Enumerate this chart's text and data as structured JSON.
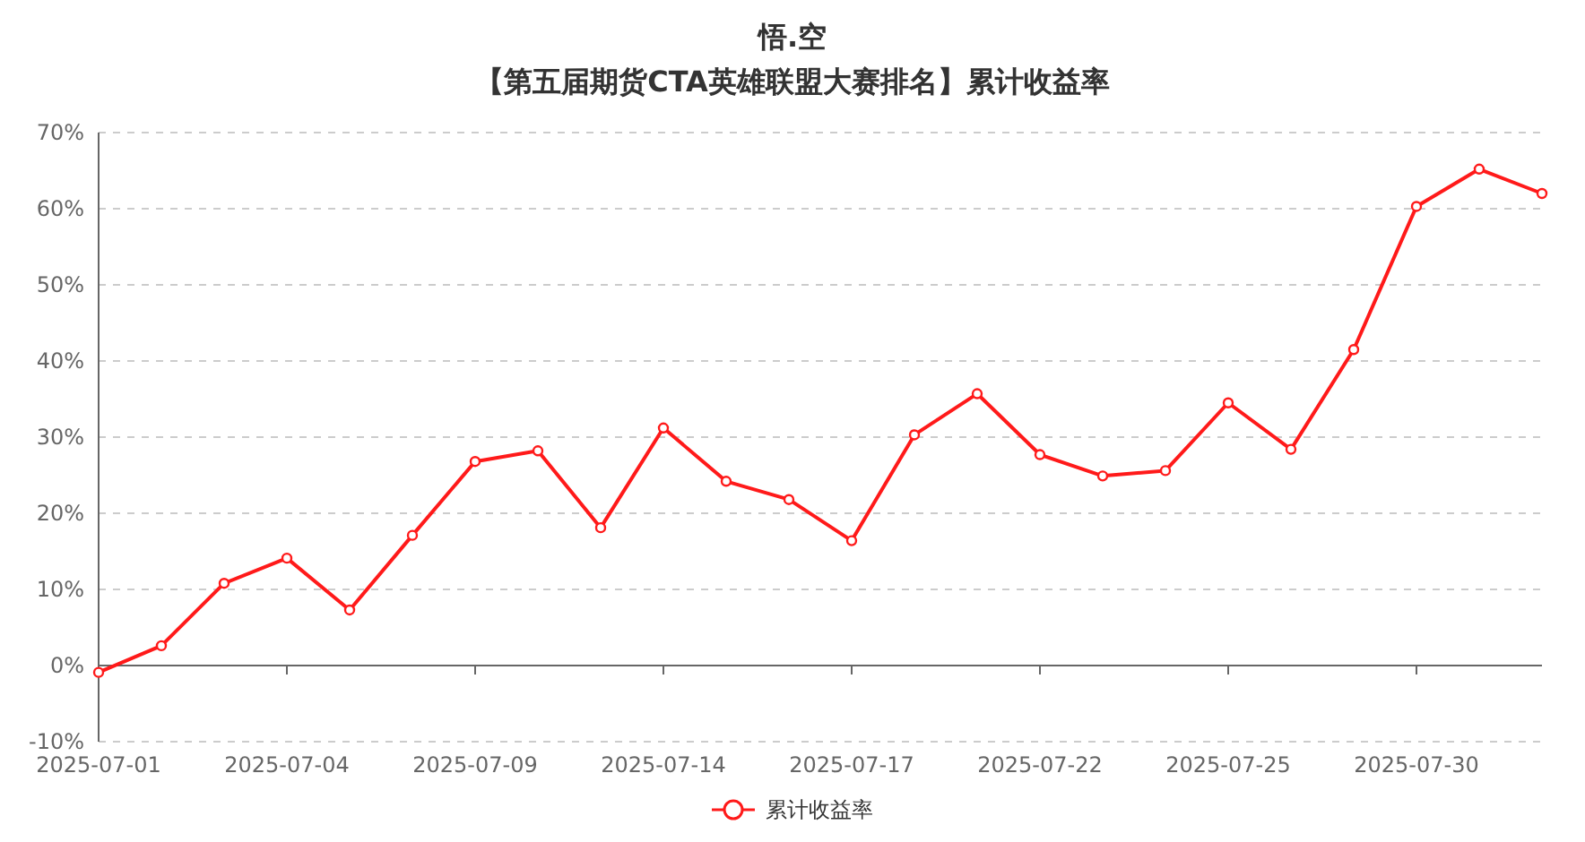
{
  "chart_data": {
    "type": "line",
    "title": "悟.空",
    "subtitle": "【第五届期货CTA英雄联盟大赛排名】累计收益率",
    "categories": [
      "2025-07-01",
      null,
      null,
      "2025-07-04",
      null,
      null,
      "2025-07-09",
      null,
      null,
      "2025-07-14",
      null,
      null,
      "2025-07-17",
      null,
      null,
      "2025-07-22",
      null,
      null,
      "2025-07-25",
      null,
      null,
      "2025-07-30",
      null,
      null
    ],
    "series": [
      {
        "name": "累计收益率",
        "color": "#ff1a1a",
        "values": [
          -0.9,
          2.6,
          10.8,
          14.1,
          7.3,
          17.1,
          26.8,
          28.2,
          18.1,
          31.2,
          24.2,
          21.8,
          16.4,
          30.3,
          35.7,
          27.7,
          24.9,
          25.6,
          34.5,
          28.4,
          41.5,
          60.3,
          65.2,
          62.0
        ]
      }
    ],
    "ylim": [
      -10,
      70
    ],
    "yticks": [
      {
        "value": -10,
        "label": "-10%"
      },
      {
        "value": 0,
        "label": "0%"
      },
      {
        "value": 10,
        "label": "10%"
      },
      {
        "value": 20,
        "label": "20%"
      },
      {
        "value": 30,
        "label": "30%"
      },
      {
        "value": 40,
        "label": "40%"
      },
      {
        "value": 50,
        "label": "50%"
      },
      {
        "value": 60,
        "label": "60%"
      },
      {
        "value": 70,
        "label": "70%"
      }
    ],
    "grid": "y",
    "legend": "bottom",
    "marker": "circle",
    "line_style": "solid"
  }
}
